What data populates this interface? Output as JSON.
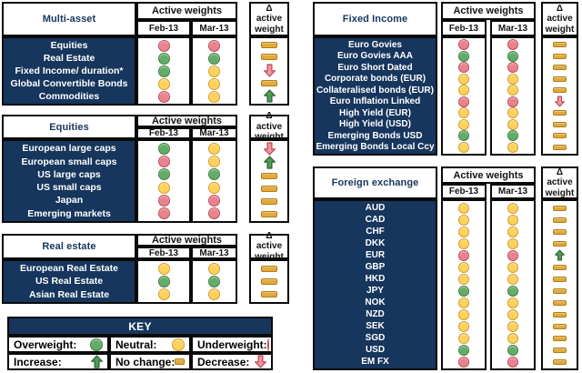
{
  "columns": {
    "group_header": "Active weights",
    "feb": "Feb-13",
    "mar": "Mar-13",
    "delta": "Δ active weight"
  },
  "panels": [
    {
      "title": "Multi-asset",
      "rows": [
        {
          "label": "Equities",
          "feb": "underweight",
          "mar": "underweight",
          "delta": "no-change"
        },
        {
          "label": "Real Estate",
          "feb": "overweight",
          "mar": "overweight",
          "delta": "no-change"
        },
        {
          "label": "Fixed Income/ duration*",
          "feb": "overweight",
          "mar": "neutral",
          "delta": "decrease"
        },
        {
          "label": "Global Convertible Bonds",
          "feb": "neutral",
          "mar": "neutral",
          "delta": "no-change"
        },
        {
          "label": "Commodities",
          "feb": "underweight",
          "mar": "neutral",
          "delta": "increase"
        }
      ]
    },
    {
      "title": "Equities",
      "rows": [
        {
          "label": "European large caps",
          "feb": "overweight",
          "mar": "neutral",
          "delta": "decrease"
        },
        {
          "label": "European small caps",
          "feb": "underweight",
          "mar": "neutral",
          "delta": "increase"
        },
        {
          "label": "US large caps",
          "feb": "overweight",
          "mar": "overweight",
          "delta": "no-change"
        },
        {
          "label": "US small caps",
          "feb": "neutral",
          "mar": "neutral",
          "delta": "no-change"
        },
        {
          "label": "Japan",
          "feb": "underweight",
          "mar": "underweight",
          "delta": "no-change"
        },
        {
          "label": "Emerging markets",
          "feb": "underweight",
          "mar": "underweight",
          "delta": "no-change"
        }
      ]
    },
    {
      "title": "Real estate",
      "rows": [
        {
          "label": "European Real Estate",
          "feb": "neutral",
          "mar": "neutral",
          "delta": "no-change"
        },
        {
          "label": "US Real Estate",
          "feb": "overweight",
          "mar": "overweight",
          "delta": "no-change"
        },
        {
          "label": "Asian Real Estate",
          "feb": "neutral",
          "mar": "neutral",
          "delta": "no-change"
        }
      ]
    },
    {
      "title": "Fixed Income",
      "rows": [
        {
          "label": "Euro Govies",
          "feb": "underweight",
          "mar": "underweight",
          "delta": "no-change"
        },
        {
          "label": "Euro Govies AAA",
          "feb": "overweight",
          "mar": "overweight",
          "delta": "no-change"
        },
        {
          "label": "Euro Short Dated",
          "feb": "underweight",
          "mar": "underweight",
          "delta": "no-change"
        },
        {
          "label": "Corporate bonds (EUR)",
          "feb": "neutral",
          "mar": "neutral",
          "delta": "no-change"
        },
        {
          "label": "Collateralised bonds (EUR)",
          "feb": "neutral",
          "mar": "neutral",
          "delta": "no-change"
        },
        {
          "label": "Euro Inflation Linked",
          "feb": "underweight",
          "mar": "underweight",
          "delta": "decrease"
        },
        {
          "label": "High Yield (EUR)",
          "feb": "neutral",
          "mar": "neutral",
          "delta": "no-change"
        },
        {
          "label": "High Yield (USD)",
          "feb": "neutral",
          "mar": "neutral",
          "delta": "no-change"
        },
        {
          "label": "Emerging Bonds USD",
          "feb": "overweight",
          "mar": "overweight",
          "delta": "no-change"
        },
        {
          "label": "Emerging Bonds Local Ccy",
          "feb": "neutral",
          "mar": "neutral",
          "delta": "no-change"
        }
      ]
    },
    {
      "title": "Foreign exchange",
      "rows": [
        {
          "label": "AUD",
          "feb": "neutral",
          "mar": "neutral",
          "delta": "no-change"
        },
        {
          "label": "CAD",
          "feb": "neutral",
          "mar": "neutral",
          "delta": "no-change"
        },
        {
          "label": "CHF",
          "feb": "neutral",
          "mar": "neutral",
          "delta": "no-change"
        },
        {
          "label": "DKK",
          "feb": "neutral",
          "mar": "neutral",
          "delta": "no-change"
        },
        {
          "label": "EUR",
          "feb": "underweight",
          "mar": "underweight",
          "delta": "increase"
        },
        {
          "label": "GBP",
          "feb": "neutral",
          "mar": "neutral",
          "delta": "no-change"
        },
        {
          "label": "HKD",
          "feb": "neutral",
          "mar": "neutral",
          "delta": "no-change"
        },
        {
          "label": "JPY",
          "feb": "overweight",
          "mar": "overweight",
          "delta": "no-change"
        },
        {
          "label": "NOK",
          "feb": "neutral",
          "mar": "neutral",
          "delta": "no-change"
        },
        {
          "label": "NZD",
          "feb": "neutral",
          "mar": "neutral",
          "delta": "no-change"
        },
        {
          "label": "SEK",
          "feb": "neutral",
          "mar": "neutral",
          "delta": "no-change"
        },
        {
          "label": "SGD",
          "feb": "neutral",
          "mar": "neutral",
          "delta": "no-change"
        },
        {
          "label": "USD",
          "feb": "overweight",
          "mar": "overweight",
          "delta": "no-change"
        },
        {
          "label": "EM FX",
          "feb": "underweight",
          "mar": "underweight",
          "delta": "no-change"
        }
      ]
    }
  ],
  "key": {
    "title": "KEY",
    "entries": [
      {
        "label": "Overweight:",
        "symbol": "overweight"
      },
      {
        "label": "Neutral:",
        "symbol": "neutral"
      },
      {
        "label": "Underweight:",
        "symbol": "underweight"
      },
      {
        "label": "Increase:",
        "symbol": "increase"
      },
      {
        "label": "No change:",
        "symbol": "no-change"
      },
      {
        "label": "Decrease:",
        "symbol": "decrease"
      }
    ]
  },
  "colors": {
    "navy": "#17365D",
    "overweight_fill": "#62AD66",
    "overweight_border": "#3F7C45",
    "neutral_fill": "#FFD25B",
    "neutral_border": "#D39B2F",
    "underweight_fill": "#E8838D",
    "underweight_border": "#BC4B55",
    "no_change_fill": "#E2A93B",
    "no_change_border": "#AE7E1C",
    "increase_fill": "#4E9C56",
    "increase_border": "#2C5F33",
    "decrease_fill": "#EC96A0",
    "decrease_border": "#BE4650"
  }
}
